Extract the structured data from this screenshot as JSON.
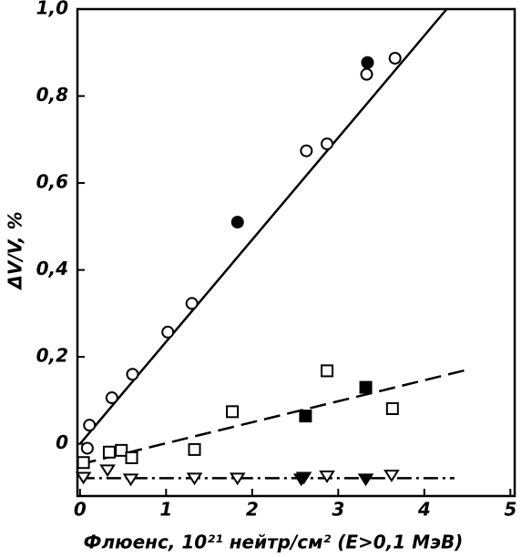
{
  "chart_data": {
    "type": "scatter",
    "xlabel": "Флюенс, 10²¹ нейтр/см² (E>0,1 МэВ)",
    "ylabel": "ΔV/V, %",
    "xlim": [
      -0.03,
      5.05
    ],
    "ylim": [
      -0.12,
      1.0
    ],
    "xticks": [
      0,
      1,
      2,
      3,
      4,
      5
    ],
    "yticks": [
      0,
      {
        "value": 0.2,
        "label": "0,2"
      },
      {
        "value": 0.4,
        "label": "0,4"
      },
      {
        "value": 0.6,
        "label": "0,6"
      },
      {
        "value": 0.8,
        "label": "0,8"
      },
      {
        "value": 1.0,
        "label": "1,0"
      }
    ],
    "grid": false,
    "series": [
      {
        "marker": "circle",
        "filled": false,
        "color": "#000000",
        "x": [
          0.085,
          0.11,
          0.37,
          0.61,
          1.02,
          1.3,
          2.63,
          2.87,
          3.33,
          3.66
        ],
        "values": [
          -0.01,
          0.043,
          0.106,
          0.16,
          0.257,
          0.323,
          0.674,
          0.69,
          0.85,
          0.887
        ]
      },
      {
        "marker": "circle",
        "filled": true,
        "color": "#000000",
        "x": [
          1.83,
          3.34
        ],
        "values": [
          0.51,
          0.877
        ]
      },
      {
        "marker": "square",
        "filled": false,
        "color": "#000000",
        "x": [
          0.04,
          0.34,
          0.48,
          0.6,
          1.33,
          1.77,
          2.87,
          3.63
        ],
        "values": [
          -0.043,
          -0.019,
          -0.015,
          -0.032,
          -0.013,
          0.074,
          0.168,
          0.081
        ]
      },
      {
        "marker": "square",
        "filled": true,
        "color": "#000000",
        "x": [
          2.62,
          3.32
        ],
        "values": [
          0.064,
          0.13
        ]
      },
      {
        "marker": "triangle",
        "filled": false,
        "color": "#000000",
        "x": [
          0.04,
          0.32,
          0.59,
          1.33,
          1.83,
          2.6,
          2.87,
          3.62
        ],
        "values": [
          -0.077,
          -0.06,
          -0.081,
          -0.079,
          -0.079,
          -0.077,
          -0.074,
          -0.072
        ]
      },
      {
        "marker": "triangle",
        "filled": true,
        "color": "#000000",
        "x": [
          2.57,
          3.32
        ],
        "values": [
          -0.081,
          -0.081
        ]
      }
    ],
    "fits": [
      {
        "style": "solid",
        "x": [
          0,
          4.26
        ],
        "values": [
          0,
          1.0
        ]
      },
      {
        "style": "dashed",
        "x": [
          0,
          4.49
        ],
        "values": [
          -0.047,
          0.17
        ]
      },
      {
        "style": "dashdot",
        "x": [
          0,
          4.35
        ],
        "values": [
          -0.079,
          -0.079
        ]
      }
    ]
  }
}
